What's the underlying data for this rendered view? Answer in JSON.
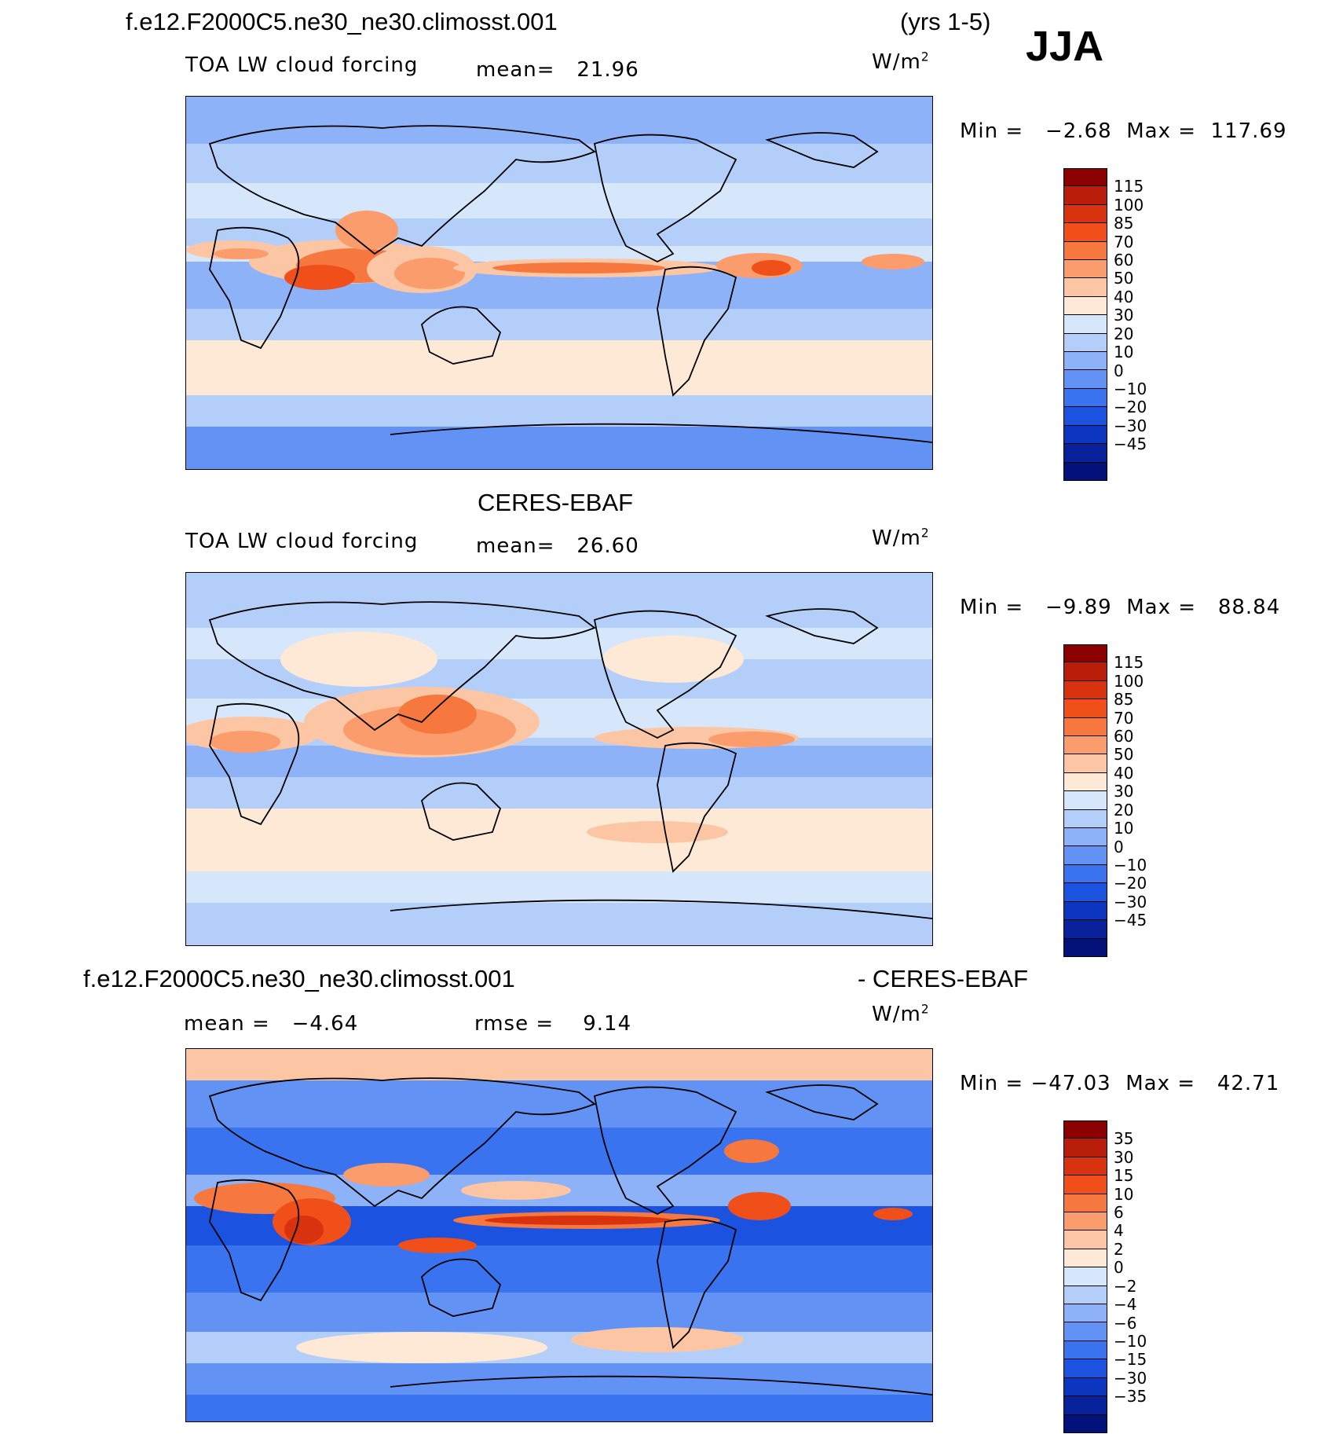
{
  "header": {
    "case_name": "f.e12.F2000C5.ne30_ne30.climosst.001",
    "years": "(yrs 1-5)",
    "season": "JJA"
  },
  "panel1": {
    "variable": "TOA LW cloud forcing",
    "mean_label": "mean=",
    "mean_value": "21.96",
    "units_base": "W/m",
    "units_exp": "2",
    "min_label": "Min =",
    "min_value": "−2.68",
    "max_label": "Max =",
    "max_value": "117.69"
  },
  "panel2": {
    "dataset": "CERES-EBAF",
    "variable": "TOA LW cloud forcing",
    "mean_label": "mean=",
    "mean_value": "26.60",
    "units_base": "W/m",
    "units_exp": "2",
    "min_label": "Min =",
    "min_value": "−9.89",
    "max_label": "Max =",
    "max_value": "88.84"
  },
  "panel3": {
    "case_name": "f.e12.F2000C5.ne30_ne30.climosst.001",
    "minus_obs": "- CERES-EBAF",
    "mean_label": "mean =",
    "mean_value": "−4.64",
    "rmse_label": "rmse =",
    "rmse_value": "9.14",
    "units_base": "W/m",
    "units_exp": "2",
    "min_label": "Min =",
    "min_value": "−47.03",
    "max_label": "Max =",
    "max_value": "42.71"
  },
  "colorbar_abs": {
    "colors": [
      "#8b0000",
      "#b81e0a",
      "#d8320f",
      "#f04f1a",
      "#f7783e",
      "#fa9c6b",
      "#fcc6a5",
      "#fde9d5",
      "#d6e7fb",
      "#b4cefa",
      "#8eb2f7",
      "#6293f4",
      "#3a73ef",
      "#1c52e0",
      "#0c36c0",
      "#07229a",
      "#03127a"
    ],
    "labels": [
      "115",
      "100",
      "85",
      "70",
      "60",
      "50",
      "40",
      "30",
      "20",
      "10",
      "0",
      "−10",
      "−20",
      "−30",
      "−45"
    ]
  },
  "colorbar_diff": {
    "colors": [
      "#8b0000",
      "#b81e0a",
      "#d8320f",
      "#f04f1a",
      "#f7783e",
      "#fa9c6b",
      "#fcc6a5",
      "#fde9d5",
      "#d6e7fb",
      "#b4cefa",
      "#8eb2f7",
      "#6293f4",
      "#3a73ef",
      "#1c52e0",
      "#0c36c0",
      "#07229a",
      "#03127a"
    ],
    "labels": [
      "35",
      "30",
      "15",
      "10",
      "6",
      "4",
      "2",
      "0",
      "−2",
      "−4",
      "−6",
      "−10",
      "−15",
      "−30",
      "−35"
    ]
  }
}
